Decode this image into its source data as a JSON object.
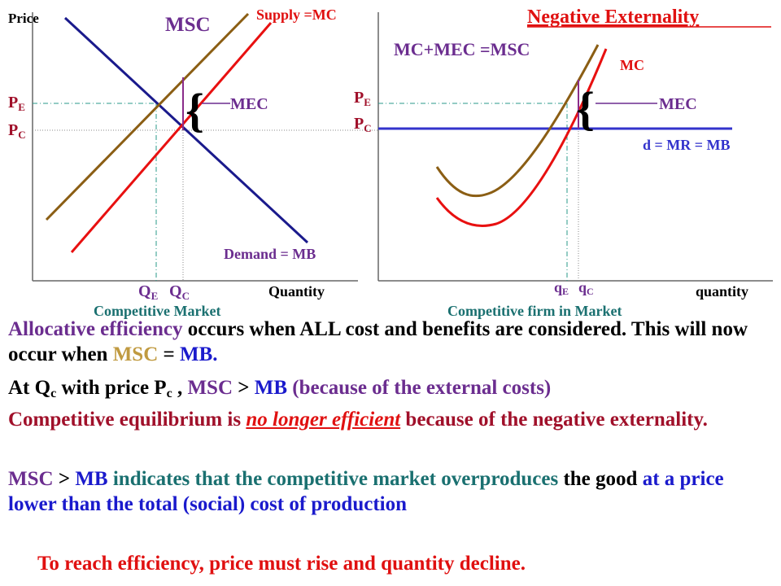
{
  "left_graph": {
    "y_axis": "Price",
    "x_axis": "Quantity",
    "msc": "MSC",
    "supply": "Supply =MC",
    "demand": "Demand = MB",
    "mec": "MEC",
    "pe": {
      "main": "P",
      "sub": "E"
    },
    "pc": {
      "main": "P",
      "sub": "C"
    },
    "qe": {
      "main": "Q",
      "sub": "E"
    },
    "qc": {
      "main": "Q",
      "sub": "C"
    },
    "caption": "Competitive Market"
  },
  "right_graph": {
    "title": "Negative Externality",
    "msc": "MC+MEC =MSC",
    "mc": "MC",
    "mec": "MEC",
    "demand": "d = MR = MB",
    "x_axis": "quantity",
    "pe": {
      "main": "P",
      "sub": "E"
    },
    "pc": {
      "main": "P",
      "sub": "C"
    },
    "qe": {
      "main": "q",
      "sub": "E"
    },
    "qc": {
      "main": "q",
      "sub": "C"
    },
    "caption": "Competitive firm in Market"
  },
  "paragraphs": [
    [
      "Allocative efficiency",
      " occurs when ALL cost and benefits are considered. This will now occur when ",
      "MSC",
      " = ",
      "MB."
    ],
    [
      "At Q",
      "c",
      " with price P",
      "c",
      " , ",
      "MSC",
      " > ",
      "MB",
      " (because of the external costs)"
    ],
    [
      "Competitive equilibrium is ",
      "no longer efficient",
      " because of the negative externality."
    ],
    [
      "MSC",
      " > ",
      "MB",
      " indicates that the competitive market overproduces",
      " the good ",
      "at a price lower than the total (social) cost of production"
    ],
    [
      "To reach efficiency, price must rise and quantity decline."
    ]
  ]
}
